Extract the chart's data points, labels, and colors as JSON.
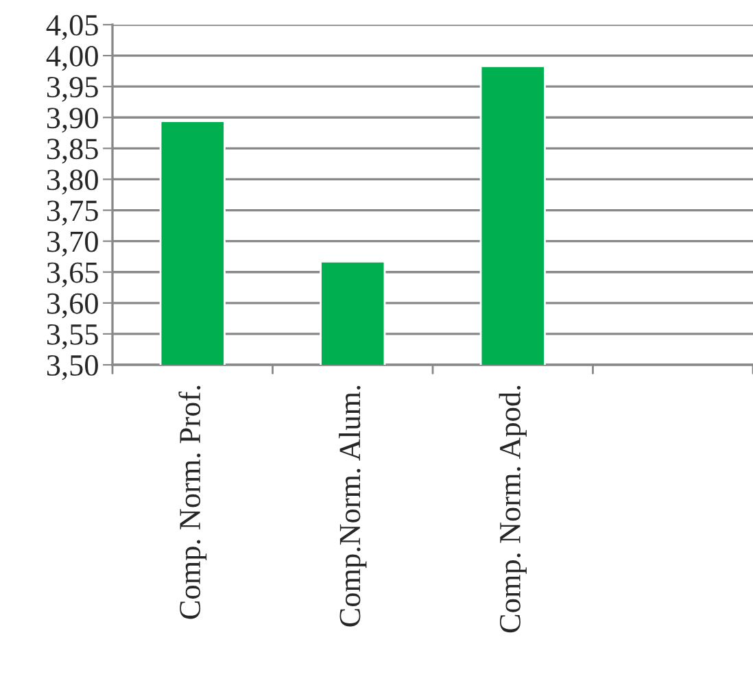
{
  "chart_data": {
    "type": "bar",
    "categories": [
      "Comp. Norm. Prof.",
      "Comp.Norm. Alum.",
      "Comp. Norm. Apod.",
      null
    ],
    "values": [
      3.894,
      3.667,
      3.983,
      null
    ],
    "color": "#00b050",
    "ylim": [
      3.5,
      4.05
    ],
    "yticks": [
      {
        "value": 3.5,
        "label": "3,50"
      },
      {
        "value": 3.55,
        "label": "3,55"
      },
      {
        "value": 3.6,
        "label": "3,60"
      },
      {
        "value": 3.65,
        "label": "3,65"
      },
      {
        "value": 3.7,
        "label": "3,70"
      },
      {
        "value": 3.75,
        "label": "3,75"
      },
      {
        "value": 3.8,
        "label": "3,80"
      },
      {
        "value": 3.85,
        "label": "3,85"
      },
      {
        "value": 3.9,
        "label": "3,90"
      },
      {
        "value": 3.95,
        "label": "3,95"
      },
      {
        "value": 4.0,
        "label": "4,00"
      },
      {
        "value": 4.05,
        "label": "4,05"
      }
    ],
    "grid": "y"
  }
}
